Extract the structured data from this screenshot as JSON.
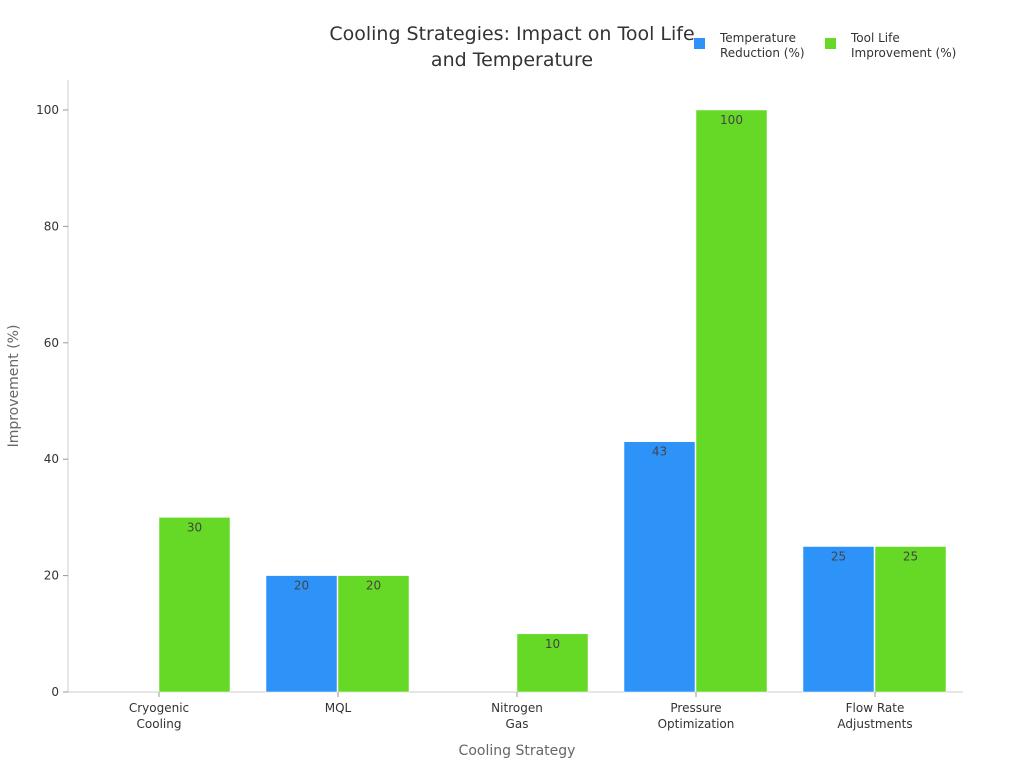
{
  "chart_data": {
    "type": "bar",
    "title": [
      "Cooling Strategies: Impact on Tool Life",
      "and Temperature"
    ],
    "xlabel": "Cooling Strategy",
    "ylabel": "Improvement (%)",
    "categories": [
      [
        "Cryogenic",
        "Cooling"
      ],
      [
        "MQL"
      ],
      [
        "Nitrogen",
        "Gas"
      ],
      [
        "Pressure",
        "Optimization"
      ],
      [
        "Flow Rate",
        "Adjustments"
      ]
    ],
    "series": [
      {
        "name": [
          "Temperature",
          "Reduction (%)"
        ],
        "color": "#2e93f9",
        "values": [
          null,
          20,
          null,
          43,
          25
        ]
      },
      {
        "name": [
          "Tool Life",
          "Improvement (%)"
        ],
        "color": "#66d927",
        "values": [
          30,
          20,
          10,
          100,
          25
        ]
      }
    ],
    "ylim": [
      0,
      105
    ],
    "yticks": [
      0,
      20,
      40,
      60,
      80,
      100
    ],
    "grid": false,
    "legend": "top-right"
  }
}
